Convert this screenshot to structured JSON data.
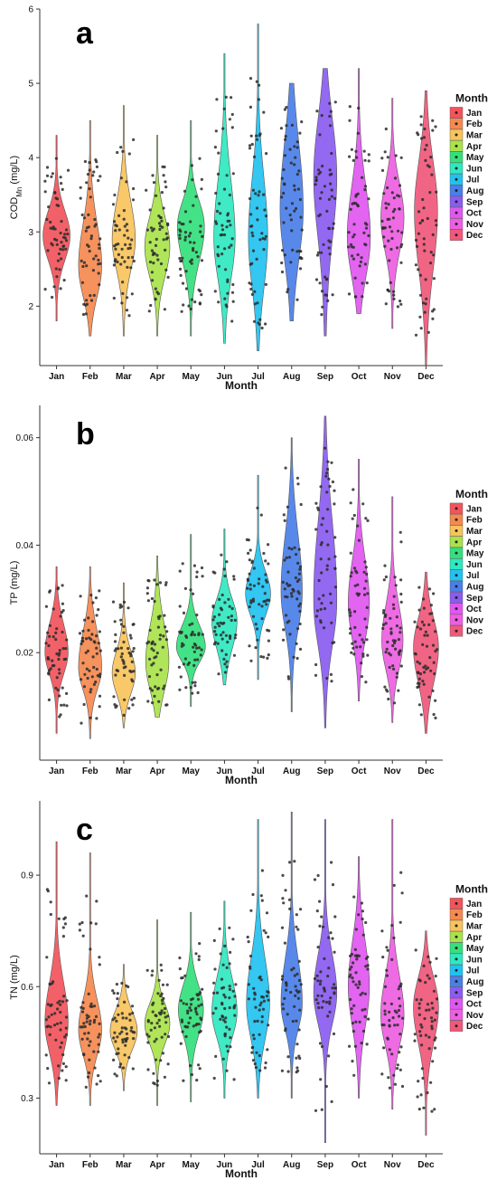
{
  "colors": [
    "#f2545b",
    "#f5894f",
    "#f7c35c",
    "#a9e34b",
    "#34e07c",
    "#2fe8c0",
    "#22c2f0",
    "#4a7fe8",
    "#8a5cf0",
    "#e057f0",
    "#ee5ee2",
    "#f0587a"
  ],
  "chart_data": [
    {
      "type": "violin",
      "panel_label": "a",
      "categories": [
        "Jan",
        "Feb",
        "Mar",
        "Apr",
        "May",
        "Jun",
        "Jul",
        "Aug",
        "Sep",
        "Oct",
        "Nov",
        "Dec"
      ],
      "xlabel": "Month",
      "ylabel_main": "COD",
      "ylabel_sub": "Mn",
      "ylabel_unit": " (mg/L)",
      "ylim": [
        1.2,
        6.0
      ],
      "yticks": [
        2,
        3,
        4,
        5,
        6
      ],
      "yticks_text": [
        "2",
        "3",
        "4",
        "5",
        "6"
      ],
      "legend_title": "Month",
      "grid": false,
      "legend_position": "right",
      "series": [
        {
          "min": 1.8,
          "q1": 2.7,
          "median": 2.95,
          "q3": 3.2,
          "max": 4.3,
          "mode": 2.95,
          "width": 0.7
        },
        {
          "min": 1.6,
          "q1": 2.5,
          "median": 2.8,
          "q3": 3.2,
          "max": 4.5,
          "mode": 2.5,
          "width": 0.6
        },
        {
          "min": 1.6,
          "q1": 2.5,
          "median": 2.8,
          "q3": 3.2,
          "max": 4.7,
          "mode": 2.9,
          "width": 0.6
        },
        {
          "min": 1.6,
          "q1": 2.5,
          "median": 2.8,
          "q3": 3.1,
          "max": 4.3,
          "mode": 2.8,
          "width": 0.65
        },
        {
          "min": 1.6,
          "q1": 2.6,
          "median": 2.95,
          "q3": 3.2,
          "max": 4.5,
          "mode": 3.1,
          "width": 0.7
        },
        {
          "min": 1.5,
          "q1": 2.5,
          "median": 2.9,
          "q3": 3.5,
          "max": 5.4,
          "mode": 2.9,
          "width": 0.55
        },
        {
          "min": 1.4,
          "q1": 2.5,
          "median": 3.0,
          "q3": 3.6,
          "max": 5.8,
          "mode": 2.9,
          "width": 0.5
        },
        {
          "min": 1.8,
          "q1": 2.7,
          "median": 3.2,
          "q3": 3.9,
          "max": 5.0,
          "mode": 3.3,
          "width": 0.6
        },
        {
          "min": 1.6,
          "q1": 2.7,
          "median": 3.3,
          "q3": 3.9,
          "max": 5.2,
          "mode": 3.8,
          "width": 0.6
        },
        {
          "min": 1.9,
          "q1": 2.7,
          "median": 3.1,
          "q3": 3.6,
          "max": 5.2,
          "mode": 2.9,
          "width": 0.6
        },
        {
          "min": 1.7,
          "q1": 2.8,
          "median": 3.15,
          "q3": 3.5,
          "max": 4.8,
          "mode": 3.2,
          "width": 0.6
        },
        {
          "min": 1.2,
          "q1": 2.6,
          "median": 3.2,
          "q3": 3.7,
          "max": 4.9,
          "mode": 3.3,
          "width": 0.6
        }
      ]
    },
    {
      "type": "violin",
      "panel_label": "b",
      "categories": [
        "Jan",
        "Feb",
        "Mar",
        "Apr",
        "May",
        "Jun",
        "Jul",
        "Aug",
        "Sep",
        "Oct",
        "Nov",
        "Dec"
      ],
      "xlabel": "Month",
      "ylabel_main": "TP",
      "ylabel_sub": "",
      "ylabel_unit": " (mg/L)",
      "ylim": [
        0.0,
        0.066
      ],
      "yticks": [
        0.02,
        0.04,
        0.06
      ],
      "yticks_text": [
        "0.02",
        "0.04",
        "0.06"
      ],
      "legend_title": "Month",
      "grid": false,
      "legend_position": "right",
      "series": [
        {
          "min": 0.005,
          "q1": 0.017,
          "median": 0.02,
          "q3": 0.024,
          "max": 0.036,
          "mode": 0.02,
          "width": 0.6
        },
        {
          "min": 0.004,
          "q1": 0.015,
          "median": 0.018,
          "q3": 0.023,
          "max": 0.036,
          "mode": 0.017,
          "width": 0.6
        },
        {
          "min": 0.006,
          "q1": 0.015,
          "median": 0.018,
          "q3": 0.021,
          "max": 0.033,
          "mode": 0.016,
          "width": 0.6
        },
        {
          "min": 0.008,
          "q1": 0.016,
          "median": 0.02,
          "q3": 0.025,
          "max": 0.038,
          "mode": 0.018,
          "width": 0.6
        },
        {
          "min": 0.01,
          "q1": 0.019,
          "median": 0.021,
          "q3": 0.024,
          "max": 0.042,
          "mode": 0.021,
          "width": 0.75
        },
        {
          "min": 0.014,
          "q1": 0.022,
          "median": 0.026,
          "q3": 0.029,
          "max": 0.043,
          "mode": 0.026,
          "width": 0.65
        },
        {
          "min": 0.015,
          "q1": 0.028,
          "median": 0.031,
          "q3": 0.034,
          "max": 0.053,
          "mode": 0.031,
          "width": 0.65
        },
        {
          "min": 0.009,
          "q1": 0.027,
          "median": 0.032,
          "q3": 0.04,
          "max": 0.06,
          "mode": 0.031,
          "width": 0.55
        },
        {
          "min": 0.006,
          "q1": 0.026,
          "median": 0.032,
          "q3": 0.043,
          "max": 0.064,
          "mode": 0.029,
          "width": 0.6
        },
        {
          "min": 0.011,
          "q1": 0.025,
          "median": 0.03,
          "q3": 0.036,
          "max": 0.056,
          "mode": 0.029,
          "width": 0.55
        },
        {
          "min": 0.007,
          "q1": 0.019,
          "median": 0.023,
          "q3": 0.028,
          "max": 0.049,
          "mode": 0.022,
          "width": 0.55
        },
        {
          "min": 0.005,
          "q1": 0.016,
          "median": 0.021,
          "q3": 0.025,
          "max": 0.035,
          "mode": 0.021,
          "width": 0.65
        }
      ]
    },
    {
      "type": "violin",
      "panel_label": "c",
      "categories": [
        "Jan",
        "Feb",
        "Mar",
        "Apr",
        "May",
        "Jun",
        "Jul",
        "Aug",
        "Sep",
        "Oct",
        "Nov",
        "Dec"
      ],
      "xlabel": "Month",
      "ylabel_main": "TN",
      "ylabel_sub": "",
      "ylabel_unit": " (mg/L)",
      "ylim": [
        0.15,
        1.1
      ],
      "yticks": [
        0.3,
        0.6,
        0.9
      ],
      "yticks_text": [
        "0.3",
        "0.6",
        "0.9"
      ],
      "legend_title": "Month",
      "grid": false,
      "legend_position": "right",
      "series": [
        {
          "min": 0.28,
          "q1": 0.46,
          "median": 0.52,
          "q3": 0.6,
          "max": 0.99,
          "mode": 0.5,
          "width": 0.6
        },
        {
          "min": 0.28,
          "q1": 0.45,
          "median": 0.5,
          "q3": 0.56,
          "max": 0.96,
          "mode": 0.48,
          "width": 0.6
        },
        {
          "min": 0.32,
          "q1": 0.45,
          "median": 0.49,
          "q3": 0.53,
          "max": 0.66,
          "mode": 0.48,
          "width": 0.7
        },
        {
          "min": 0.28,
          "q1": 0.46,
          "median": 0.5,
          "q3": 0.54,
          "max": 0.78,
          "mode": 0.5,
          "width": 0.65
        },
        {
          "min": 0.29,
          "q1": 0.47,
          "median": 0.52,
          "q3": 0.57,
          "max": 0.8,
          "mode": 0.54,
          "width": 0.65
        },
        {
          "min": 0.3,
          "q1": 0.48,
          "median": 0.53,
          "q3": 0.6,
          "max": 0.83,
          "mode": 0.53,
          "width": 0.65
        },
        {
          "min": 0.3,
          "q1": 0.5,
          "median": 0.57,
          "q3": 0.66,
          "max": 1.05,
          "mode": 0.55,
          "width": 0.6
        },
        {
          "min": 0.3,
          "q1": 0.52,
          "median": 0.57,
          "q3": 0.66,
          "max": 1.07,
          "mode": 0.55,
          "width": 0.55
        },
        {
          "min": 0.18,
          "q1": 0.52,
          "median": 0.58,
          "q3": 0.66,
          "max": 1.05,
          "mode": 0.58,
          "width": 0.6
        },
        {
          "min": 0.3,
          "q1": 0.52,
          "median": 0.6,
          "q3": 0.69,
          "max": 0.95,
          "mode": 0.6,
          "width": 0.55
        },
        {
          "min": 0.27,
          "q1": 0.47,
          "median": 0.53,
          "q3": 0.61,
          "max": 1.05,
          "mode": 0.52,
          "width": 0.6
        },
        {
          "min": 0.2,
          "q1": 0.44,
          "median": 0.51,
          "q3": 0.57,
          "max": 0.75,
          "mode": 0.55,
          "width": 0.65
        }
      ]
    }
  ]
}
